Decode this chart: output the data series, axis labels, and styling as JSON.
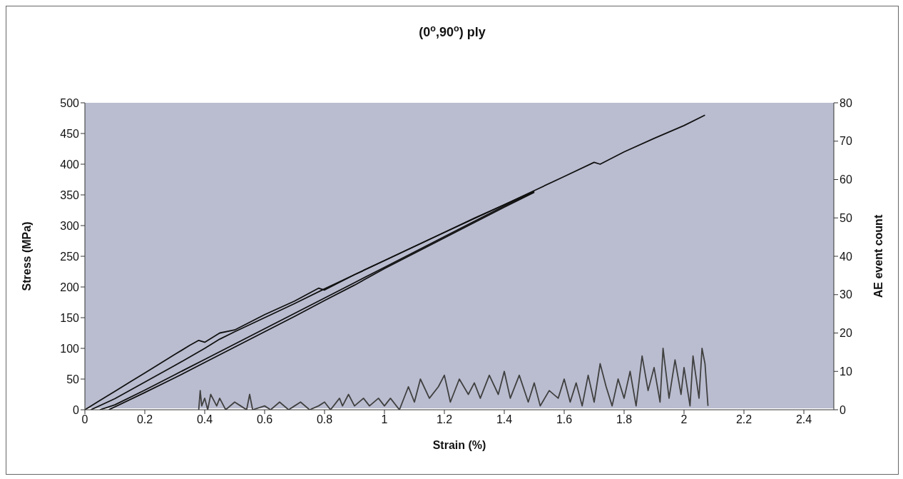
{
  "chart_data": {
    "type": "line",
    "title": "(0$^{o}$,90$^{o}$) ply",
    "xlabel": "Strain (%)",
    "ylabel": "Stress (MPa)",
    "y2label": "AE event count",
    "xlim": [
      0,
      2.5
    ],
    "xticks": [
      0,
      0.2,
      0.4,
      0.6,
      0.8,
      1,
      1.2,
      1.4,
      1.6,
      1.8,
      2,
      2.2,
      2.4
    ],
    "ylim": [
      0,
      500
    ],
    "yticks": [
      0,
      50,
      100,
      150,
      200,
      250,
      300,
      350,
      400,
      450,
      500
    ],
    "y2lim": [
      0,
      80
    ],
    "y2ticks": [
      0,
      10,
      20,
      30,
      40,
      50,
      60,
      70,
      80
    ],
    "marker": "none",
    "line_style": "solid",
    "series": [
      {
        "color": "#111111",
        "x": [
          0,
          0.05,
          0.1,
          0.15,
          0.2,
          0.25,
          0.3,
          0.35,
          0.38,
          0.4,
          0.45,
          0.5,
          0.6,
          0.7,
          0.78,
          0.8,
          0.9,
          1.0,
          1.1,
          1.2,
          1.3,
          1.4,
          1.5,
          1.6,
          1.7,
          1.72,
          1.8,
          1.9,
          2.0,
          2.07
        ],
        "values": [
          0,
          15,
          30,
          45,
          60,
          75,
          90,
          105,
          113,
          110,
          125,
          130,
          155,
          177,
          198,
          195,
          220,
          243,
          266,
          289,
          312,
          334,
          357,
          380,
          403,
          400,
          420,
          442,
          463,
          480
        ]
      },
      {
        "color": "#111111",
        "x": [
          0.02,
          0.1,
          0.2,
          0.3,
          0.4,
          0.45,
          0.5,
          0.6,
          0.7,
          0.8,
          0.9,
          1.0,
          1.2,
          1.4,
          1.5
        ],
        "values": [
          0,
          18,
          45,
          72,
          100,
          115,
          127,
          150,
          173,
          197,
          220,
          243,
          289,
          334,
          356
        ]
      },
      {
        "color": "#111111",
        "x": [
          0.05,
          0.1,
          0.2,
          0.3,
          0.4,
          0.5,
          0.6,
          0.7,
          0.8,
          0.9,
          1.0,
          1.2,
          1.4,
          1.5
        ],
        "values": [
          0,
          8,
          32,
          57,
          82,
          107,
          132,
          157,
          182,
          207,
          232,
          282,
          332,
          355
        ]
      },
      {
        "color": "#111111",
        "x": [
          0.08,
          0.2,
          0.3,
          0.4,
          0.5,
          0.6,
          0.7,
          0.8,
          0.9,
          1.0,
          1.2,
          1.4,
          1.5
        ],
        "values": [
          0,
          28,
          52,
          77,
          102,
          127,
          152,
          178,
          203,
          230,
          280,
          330,
          354
        ]
      },
      {
        "color": "#404040",
        "axis": "y2",
        "x": [
          0.38,
          0.385,
          0.39,
          0.4,
          0.41,
          0.42,
          0.44,
          0.45,
          0.47,
          0.5,
          0.52,
          0.54,
          0.55,
          0.56,
          0.6,
          0.62,
          0.65,
          0.68,
          0.7,
          0.72,
          0.75,
          0.78,
          0.8,
          0.82,
          0.85,
          0.86,
          0.88,
          0.9,
          0.93,
          0.95,
          0.98,
          1.0,
          1.02,
          1.05,
          1.08,
          1.1,
          1.12,
          1.15,
          1.18,
          1.2,
          1.22,
          1.25,
          1.28,
          1.3,
          1.32,
          1.35,
          1.38,
          1.4,
          1.42,
          1.45,
          1.48,
          1.5,
          1.52,
          1.55,
          1.58,
          1.6,
          1.62,
          1.64,
          1.66,
          1.68,
          1.7,
          1.72,
          1.74,
          1.76,
          1.78,
          1.8,
          1.82,
          1.84,
          1.86,
          1.88,
          1.9,
          1.92,
          1.93,
          1.95,
          1.97,
          1.99,
          2.0,
          2.02,
          2.03,
          2.05,
          2.06,
          2.07,
          2.08
        ],
        "values": [
          0,
          5,
          1,
          3,
          0,
          4,
          1,
          3,
          0,
          2,
          1,
          0,
          4,
          0,
          1,
          0,
          2,
          0,
          1,
          2,
          0,
          1,
          2,
          0,
          3,
          1,
          4,
          1,
          3,
          1,
          3,
          1,
          3,
          0,
          6,
          2,
          8,
          3,
          6,
          9,
          2,
          8,
          4,
          7,
          3,
          9,
          4,
          10,
          3,
          9,
          2,
          7,
          1,
          5,
          3,
          8,
          2,
          7,
          1,
          9,
          2,
          12,
          6,
          1,
          8,
          3,
          10,
          1,
          14,
          5,
          11,
          2,
          16,
          3,
          13,
          4,
          11,
          1,
          14,
          3,
          16,
          12,
          1
        ]
      }
    ]
  }
}
